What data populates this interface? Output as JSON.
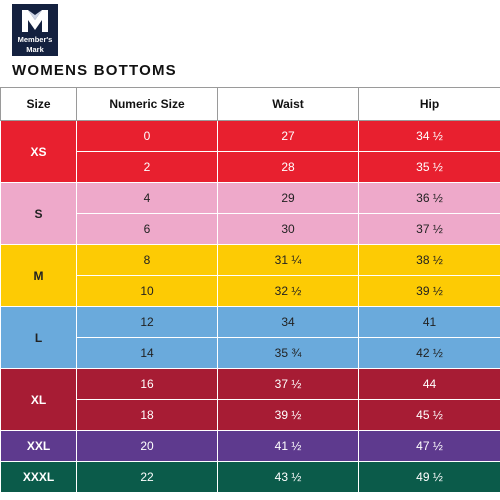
{
  "logo": {
    "line1": "Member's",
    "line2": "Mark"
  },
  "title": "WOMENS BOTTOMS",
  "headers": [
    "Size",
    "Numeric Size",
    "Waist",
    "Hip"
  ],
  "groups": [
    {
      "size": "XS",
      "color": "#e8202f",
      "text_color": "#ffffff",
      "rows": [
        {
          "numeric": "0",
          "waist": "27",
          "hip": "34 ½"
        },
        {
          "numeric": "2",
          "waist": "28",
          "hip": "35 ½"
        }
      ]
    },
    {
      "size": "S",
      "color": "#eea9ca",
      "text_color": "#222222",
      "rows": [
        {
          "numeric": "4",
          "waist": "29",
          "hip": "36 ½"
        },
        {
          "numeric": "6",
          "waist": "30",
          "hip": "37 ½"
        }
      ]
    },
    {
      "size": "M",
      "color": "#fdcb04",
      "text_color": "#222222",
      "rows": [
        {
          "numeric": "8",
          "waist": "31 ¼",
          "hip": "38 ½"
        },
        {
          "numeric": "10",
          "waist": "32 ½",
          "hip": "39 ½"
        }
      ]
    },
    {
      "size": "L",
      "color": "#6aaadc",
      "text_color": "#222222",
      "rows": [
        {
          "numeric": "12",
          "waist": "34",
          "hip": "41"
        },
        {
          "numeric": "14",
          "waist": "35 ¾",
          "hip": "42 ½"
        }
      ]
    },
    {
      "size": "XL",
      "color": "#a71c34",
      "text_color": "#ffffff",
      "rows": [
        {
          "numeric": "16",
          "waist": "37 ½",
          "hip": "44"
        },
        {
          "numeric": "18",
          "waist": "39 ½",
          "hip": "45 ½"
        }
      ]
    },
    {
      "size": "XXL",
      "color": "#5e3a8e",
      "text_color": "#ffffff",
      "rows": [
        {
          "numeric": "20",
          "waist": "41 ½",
          "hip": "47 ½"
        }
      ]
    },
    {
      "size": "XXXL",
      "color": "#0b5b4a",
      "text_color": "#ffffff",
      "rows": [
        {
          "numeric": "22",
          "waist": "43 ½",
          "hip": "49 ½"
        }
      ]
    }
  ]
}
